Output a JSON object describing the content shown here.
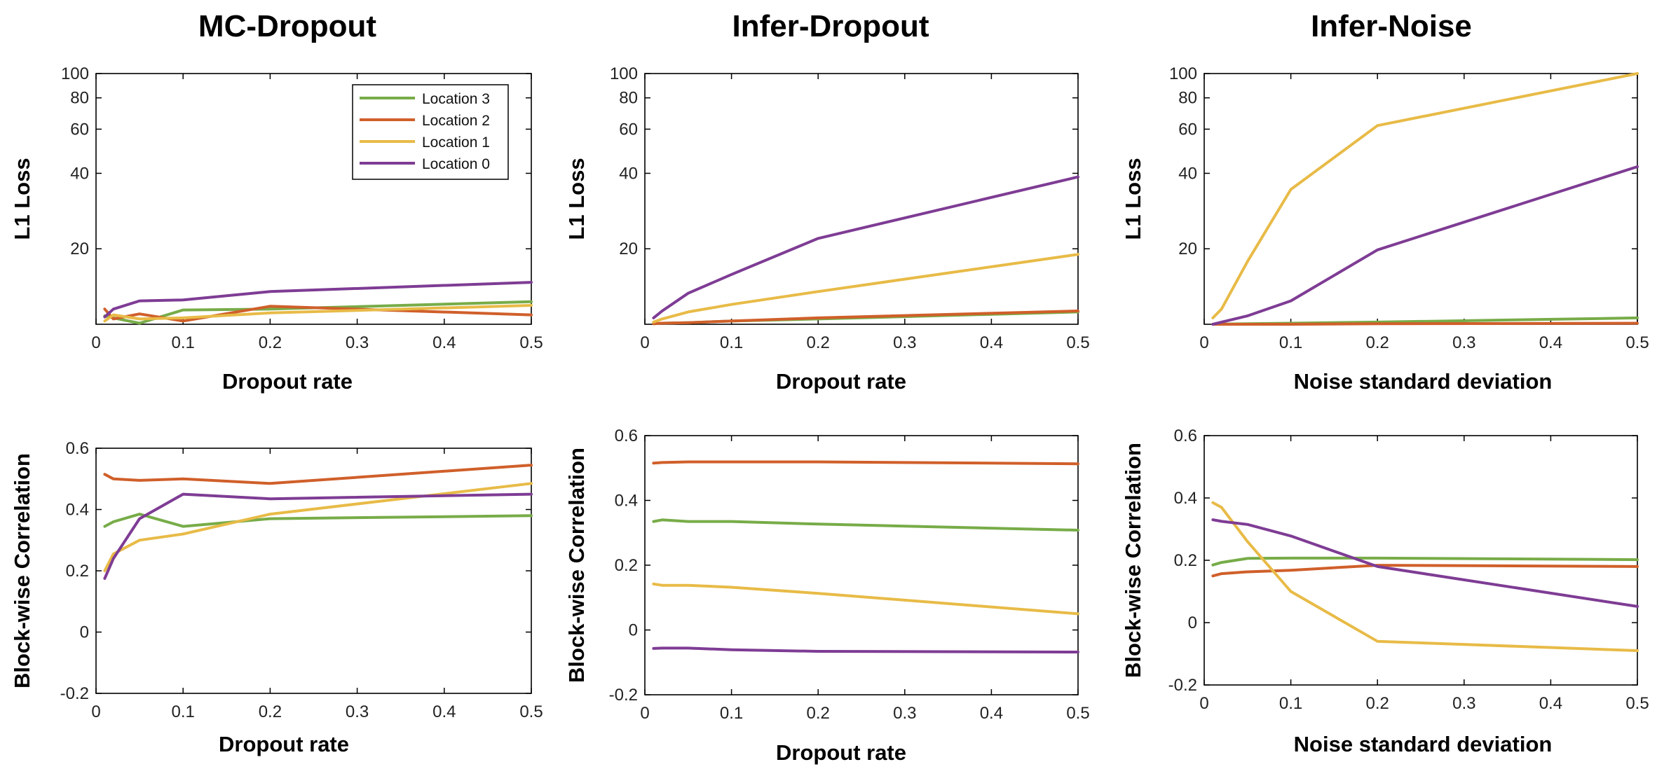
{
  "figure": {
    "column_titles": [
      "MC-Dropout",
      "Infer-Dropout",
      "Infer-Noise"
    ]
  },
  "colors": {
    "Location 3": "#77ac48",
    "Location 2": "#d05f2a",
    "Location 1": "#e8bb47",
    "Location 0": "#7e3c94"
  },
  "legend": {
    "placement": "top-right of MC-Dropout L1 Loss panel",
    "entries": [
      "Location 3",
      "Location 2",
      "Location 1",
      "Location 0"
    ]
  },
  "chart_data": [
    {
      "id": "mc-dropout-l1",
      "type": "line",
      "title": "MC-Dropout",
      "xlabel": "Dropout rate",
      "ylabel": "L1 Loss",
      "yscale": "log",
      "xlim": [
        0,
        0.5
      ],
      "ylim": [
        10,
        100
      ],
      "xticks": [
        0,
        0.1,
        0.2,
        0.3,
        0.4,
        0.5
      ],
      "xtick_labels": [
        "0",
        "0.1",
        "0.2",
        "0.3",
        "0.4",
        "0.5"
      ],
      "yticks": [
        20,
        40,
        60,
        80,
        100
      ],
      "ytick_labels": [
        "20",
        "40",
        "60",
        "80",
        "100"
      ],
      "series": [
        {
          "name": "Location 3",
          "x": [
            0.01,
            0.02,
            0.05,
            0.1,
            0.2,
            0.5
          ],
          "values": [
            10.8,
            10.6,
            10.1,
            11.4,
            11.5,
            12.3
          ]
        },
        {
          "name": "Location 2",
          "x": [
            0.01,
            0.02,
            0.05,
            0.1,
            0.2,
            0.5
          ],
          "values": [
            11.5,
            10.5,
            11.0,
            10.3,
            11.8,
            10.9
          ]
        },
        {
          "name": "Location 1",
          "x": [
            0.01,
            0.02,
            0.05,
            0.1,
            0.2,
            0.5
          ],
          "values": [
            10.3,
            10.9,
            10.5,
            10.6,
            11.1,
            11.9
          ]
        },
        {
          "name": "Location 0",
          "x": [
            0.01,
            0.02,
            0.05,
            0.1,
            0.2,
            0.5
          ],
          "values": [
            10.7,
            11.5,
            12.4,
            12.5,
            13.5,
            14.7
          ]
        }
      ]
    },
    {
      "id": "infer-dropout-l1",
      "type": "line",
      "title": "Infer-Dropout",
      "xlabel": "Dropout rate",
      "ylabel": "L1 Loss",
      "yscale": "log",
      "xlim": [
        0,
        0.5
      ],
      "ylim": [
        10,
        100
      ],
      "xticks": [
        0,
        0.1,
        0.2,
        0.3,
        0.4,
        0.5
      ],
      "xtick_labels": [
        "0",
        "0.1",
        "0.2",
        "0.3",
        "0.4",
        "0.5"
      ],
      "yticks": [
        20,
        40,
        60,
        80,
        100
      ],
      "ytick_labels": [
        "20",
        "40",
        "60",
        "80",
        "100"
      ],
      "series": [
        {
          "name": "Location 3",
          "x": [
            0.01,
            0.02,
            0.05,
            0.1,
            0.2,
            0.5
          ],
          "values": [
            10.05,
            10.1,
            10.15,
            10.3,
            10.5,
            11.2
          ]
        },
        {
          "name": "Location 2",
          "x": [
            0.01,
            0.02,
            0.05,
            0.1,
            0.2,
            0.5
          ],
          "values": [
            10.05,
            10.1,
            10.15,
            10.3,
            10.6,
            11.3
          ]
        },
        {
          "name": "Location 1",
          "x": [
            0.01,
            0.02,
            0.05,
            0.1,
            0.2,
            0.5
          ],
          "values": [
            10.2,
            10.5,
            11.2,
            12.0,
            13.5,
            19.0
          ]
        },
        {
          "name": "Location 0",
          "x": [
            0.01,
            0.02,
            0.05,
            0.1,
            0.2,
            0.5
          ],
          "values": [
            10.6,
            11.3,
            13.3,
            15.8,
            22.0,
            38.7
          ]
        }
      ]
    },
    {
      "id": "infer-noise-l1",
      "type": "line",
      "title": "Infer-Noise",
      "xlabel": "Noise standard deviation",
      "ylabel": "L1 Loss",
      "yscale": "log",
      "xlim": [
        0,
        0.5
      ],
      "ylim": [
        10,
        100
      ],
      "xticks": [
        0,
        0.1,
        0.2,
        0.3,
        0.4,
        0.5
      ],
      "xtick_labels": [
        "0",
        "0.1",
        "0.2",
        "0.3",
        "0.4",
        "0.5"
      ],
      "yticks": [
        20,
        40,
        60,
        80,
        100
      ],
      "ytick_labels": [
        "20",
        "40",
        "60",
        "80",
        "100"
      ],
      "series": [
        {
          "name": "Location 3",
          "x": [
            0.01,
            0.02,
            0.05,
            0.1,
            0.2,
            0.5
          ],
          "values": [
            10.0,
            10.02,
            10.05,
            10.1,
            10.2,
            10.6
          ]
        },
        {
          "name": "Location 2",
          "x": [
            0.01,
            0.02,
            0.05,
            0.1,
            0.2,
            0.5
          ],
          "values": [
            10.0,
            10.0,
            10.0,
            10.0,
            10.05,
            10.1
          ]
        },
        {
          "name": "Location 1",
          "x": [
            0.01,
            0.02,
            0.05,
            0.1,
            0.2,
            0.5
          ],
          "values": [
            10.6,
            11.5,
            17.8,
            34.5,
            62.0,
            100
          ]
        },
        {
          "name": "Location 0",
          "x": [
            0.01,
            0.02,
            0.05,
            0.1,
            0.2,
            0.5
          ],
          "values": [
            10.0,
            10.2,
            10.8,
            12.4,
            19.8,
            42.5
          ]
        }
      ]
    },
    {
      "id": "mc-dropout-corr",
      "type": "line",
      "title": "",
      "xlabel": "Dropout rate",
      "ylabel": "Block-wise Correlation",
      "yscale": "linear",
      "xlim": [
        0,
        0.5
      ],
      "ylim": [
        -0.2,
        0.6
      ],
      "xticks": [
        0,
        0.1,
        0.2,
        0.3,
        0.4,
        0.5
      ],
      "xtick_labels": [
        "0",
        "0.1",
        "0.2",
        "0.3",
        "0.4",
        "0.5"
      ],
      "yticks": [
        -0.2,
        0,
        0.2,
        0.4,
        0.6
      ],
      "ytick_labels": [
        "-0.2",
        "0",
        "0.2",
        "0.4",
        "0.6"
      ],
      "series": [
        {
          "name": "Location 3",
          "x": [
            0.01,
            0.02,
            0.05,
            0.1,
            0.2,
            0.5
          ],
          "values": [
            0.345,
            0.36,
            0.385,
            0.345,
            0.37,
            0.38
          ]
        },
        {
          "name": "Location 2",
          "x": [
            0.01,
            0.02,
            0.05,
            0.1,
            0.2,
            0.5
          ],
          "values": [
            0.515,
            0.5,
            0.495,
            0.5,
            0.485,
            0.545
          ]
        },
        {
          "name": "Location 1",
          "x": [
            0.01,
            0.02,
            0.05,
            0.1,
            0.2,
            0.5
          ],
          "values": [
            0.2,
            0.255,
            0.3,
            0.32,
            0.385,
            0.485
          ]
        },
        {
          "name": "Location 0",
          "x": [
            0.01,
            0.02,
            0.05,
            0.1,
            0.2,
            0.5
          ],
          "values": [
            0.175,
            0.24,
            0.37,
            0.45,
            0.435,
            0.45
          ]
        }
      ]
    },
    {
      "id": "infer-dropout-corr",
      "type": "line",
      "title": "",
      "xlabel": "Dropout rate",
      "ylabel": "Block-wise Correlation",
      "yscale": "linear",
      "xlim": [
        0,
        0.5
      ],
      "ylim": [
        -0.2,
        0.6
      ],
      "xticks": [
        0,
        0.1,
        0.2,
        0.3,
        0.4,
        0.5
      ],
      "xtick_labels": [
        "0",
        "0.1",
        "0.2",
        "0.3",
        "0.4",
        "0.5"
      ],
      "yticks": [
        -0.2,
        0,
        0.2,
        0.4,
        0.6
      ],
      "ytick_labels": [
        "-0.2",
        "0",
        "0.2",
        "0.4",
        "0.6"
      ],
      "series": [
        {
          "name": "Location 3",
          "x": [
            0.01,
            0.02,
            0.05,
            0.1,
            0.2,
            0.5
          ],
          "values": [
            0.335,
            0.34,
            0.335,
            0.335,
            0.327,
            0.308
          ]
        },
        {
          "name": "Location 2",
          "x": [
            0.01,
            0.02,
            0.05,
            0.1,
            0.2,
            0.5
          ],
          "values": [
            0.515,
            0.517,
            0.519,
            0.519,
            0.519,
            0.513
          ]
        },
        {
          "name": "Location 1",
          "x": [
            0.01,
            0.02,
            0.05,
            0.1,
            0.2,
            0.5
          ],
          "values": [
            0.142,
            0.138,
            0.138,
            0.132,
            0.113,
            0.05
          ]
        },
        {
          "name": "Location 0",
          "x": [
            0.01,
            0.02,
            0.05,
            0.1,
            0.2,
            0.5
          ],
          "values": [
            -0.057,
            -0.056,
            -0.056,
            -0.061,
            -0.066,
            -0.068
          ]
        }
      ]
    },
    {
      "id": "infer-noise-corr",
      "type": "line",
      "title": "",
      "xlabel": "Noise standard deviation",
      "ylabel": "Block-wise Correlation",
      "yscale": "linear",
      "xlim": [
        0,
        0.5
      ],
      "ylim": [
        -0.2,
        0.6
      ],
      "xticks": [
        0,
        0.1,
        0.2,
        0.3,
        0.4,
        0.5
      ],
      "xtick_labels": [
        "0",
        "0.1",
        "0.2",
        "0.3",
        "0.4",
        "0.5"
      ],
      "yticks": [
        -0.2,
        0,
        0.2,
        0.4,
        0.6
      ],
      "ytick_labels": [
        "-0.2",
        "0",
        "0.2",
        "0.4",
        "0.6"
      ],
      "series": [
        {
          "name": "Location 3",
          "x": [
            0.01,
            0.02,
            0.05,
            0.1,
            0.2,
            0.5
          ],
          "values": [
            0.185,
            0.193,
            0.206,
            0.207,
            0.207,
            0.202
          ]
        },
        {
          "name": "Location 2",
          "x": [
            0.01,
            0.02,
            0.05,
            0.1,
            0.2,
            0.5
          ],
          "values": [
            0.15,
            0.157,
            0.163,
            0.168,
            0.184,
            0.18
          ]
        },
        {
          "name": "Location 1",
          "x": [
            0.01,
            0.02,
            0.05,
            0.1,
            0.2,
            0.5
          ],
          "values": [
            0.385,
            0.37,
            0.26,
            0.1,
            -0.06,
            -0.09
          ]
        },
        {
          "name": "Location 0",
          "x": [
            0.01,
            0.02,
            0.05,
            0.1,
            0.2,
            0.5
          ],
          "values": [
            0.33,
            0.325,
            0.315,
            0.278,
            0.18,
            0.052
          ]
        }
      ]
    }
  ]
}
